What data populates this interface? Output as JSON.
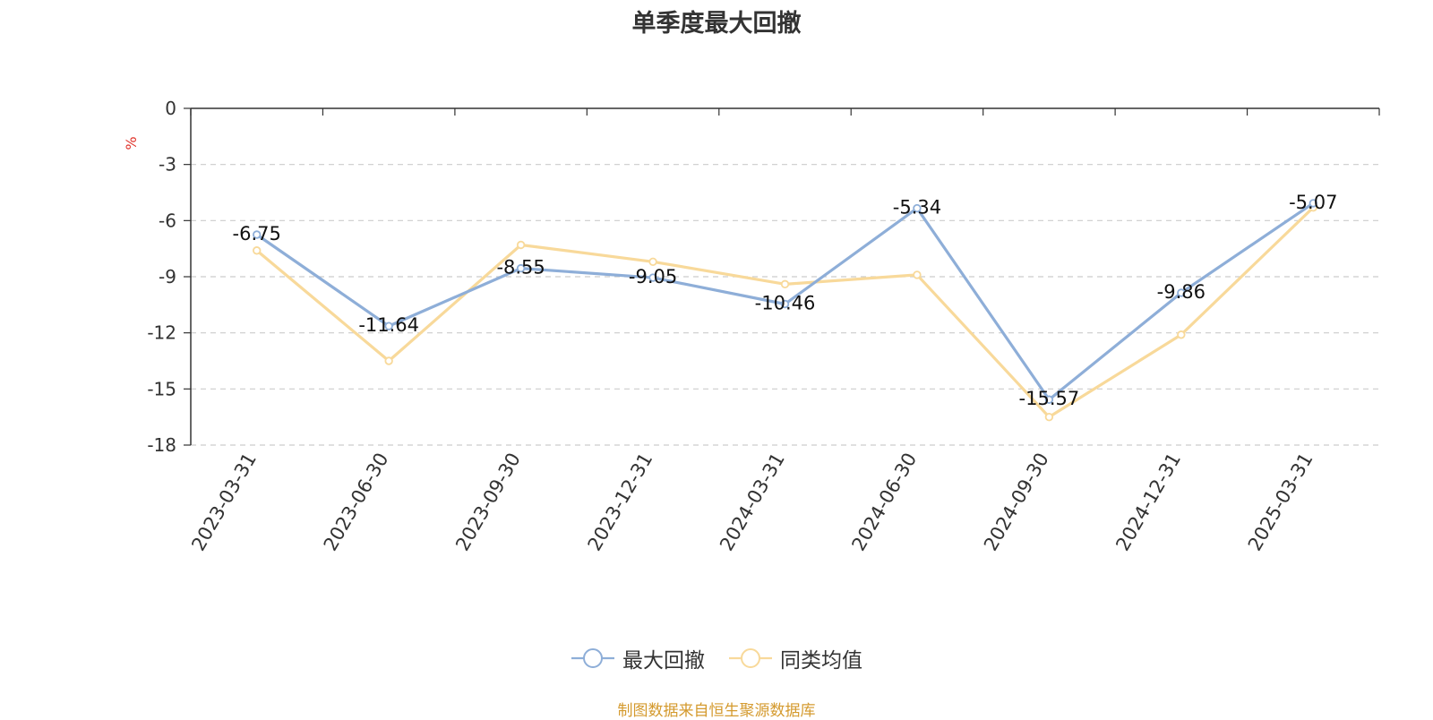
{
  "chart_data": {
    "type": "line",
    "title": "单季度最大回撤",
    "ylabel": "%",
    "categories": [
      "2023-03-31",
      "2023-06-30",
      "2023-09-30",
      "2023-12-31",
      "2024-03-31",
      "2024-06-30",
      "2024-09-30",
      "2024-12-31",
      "2025-03-31"
    ],
    "series": [
      {
        "name": "最大回撤",
        "color": "#8eaed8",
        "values": [
          -6.75,
          -11.64,
          -8.55,
          -9.05,
          -10.46,
          -5.34,
          -15.57,
          -9.86,
          -5.07
        ],
        "data_labels": [
          "-6.75",
          "-11.64",
          "-8.55",
          "-9.05",
          "-10.46",
          "-5.34",
          "-15.57",
          "-9.86",
          "-5.07"
        ]
      },
      {
        "name": "同类均值",
        "color": "#f8d99a",
        "values": [
          -7.6,
          -13.5,
          -7.3,
          -8.2,
          -9.4,
          -8.9,
          -16.5,
          -12.1,
          -5.3
        ]
      }
    ],
    "yticks": [
      "0",
      "-3",
      "-6",
      "-9",
      "-12",
      "-15",
      "-18"
    ],
    "ylim": [
      -18,
      0
    ],
    "grid": true,
    "legend_position": "bottom"
  },
  "source_note": "制图数据来自恒生聚源数据库"
}
